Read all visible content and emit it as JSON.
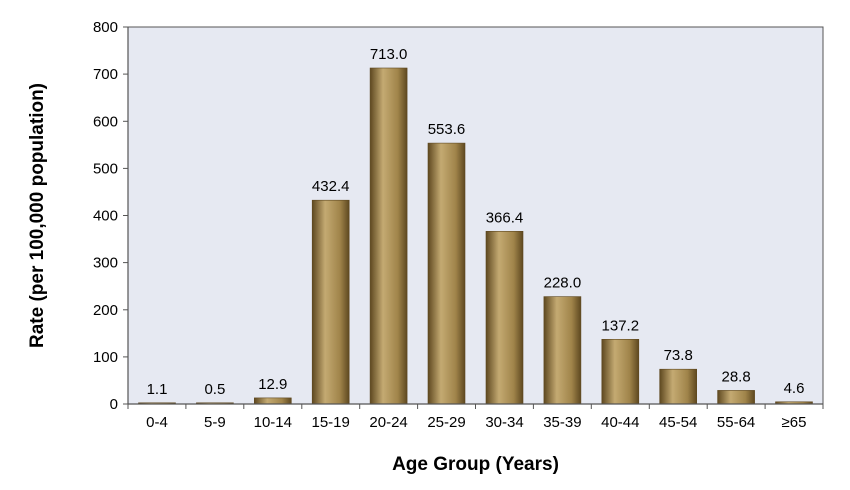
{
  "chart_data": {
    "type": "bar",
    "title": "",
    "xlabel": "Age Group (Years)",
    "ylabel": "Rate (per 100,000 population)",
    "categories": [
      "0-4",
      "5-9",
      "10-14",
      "15-19",
      "20-24",
      "25-29",
      "30-34",
      "35-39",
      "40-44",
      "45-54",
      "55-64",
      "≥65"
    ],
    "values": [
      1.1,
      0.5,
      12.9,
      432.4,
      713.0,
      553.6,
      366.4,
      228.0,
      137.2,
      73.8,
      28.8,
      4.6
    ],
    "value_labels": [
      "1.1",
      "0.5",
      "12.9",
      "432.4",
      "713.0",
      "553.6",
      "366.4",
      "228.0",
      "137.2",
      "73.8",
      "28.8",
      "4.6"
    ],
    "ylim": [
      0,
      800
    ],
    "yticks": [
      0,
      100,
      200,
      300,
      400,
      500,
      600,
      700,
      800
    ],
    "grid": false,
    "legend": "none",
    "colors": {
      "plot_background": "#e6e9f2",
      "bar_light": "#c4aa72",
      "bar_mid": "#a0844a",
      "bar_dark": "#5e4820",
      "axis": "#555555"
    }
  }
}
